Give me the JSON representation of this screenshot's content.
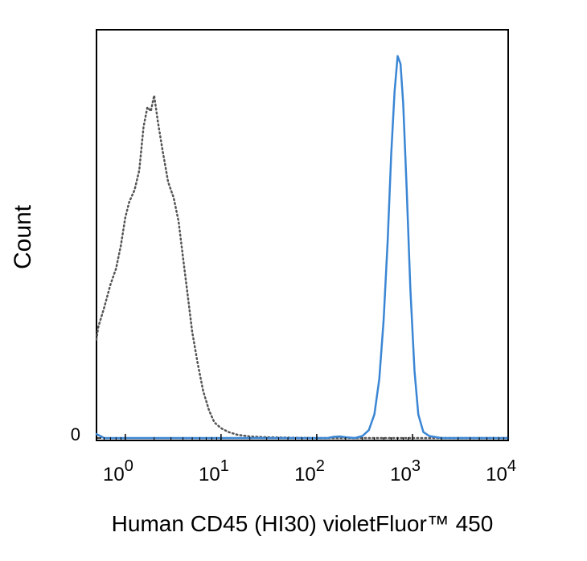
{
  "chart_data": {
    "type": "line",
    "title": "",
    "xlabel": "Human CD45 (HI30) violetFluor™ 450",
    "ylabel": "Count",
    "x_scale": "log",
    "xlim": [
      0.5,
      10000
    ],
    "ylim": [
      0,
      1.0
    ],
    "x_ticks": [
      {
        "value": 1,
        "base": "10",
        "exp": "0"
      },
      {
        "value": 10,
        "base": "10",
        "exp": "1"
      },
      {
        "value": 100,
        "base": "10",
        "exp": "2"
      },
      {
        "value": 1000,
        "base": "10",
        "exp": "3"
      },
      {
        "value": 10000,
        "base": "10",
        "exp": "4"
      }
    ],
    "y_ticks": [
      {
        "value": 0,
        "label": "0"
      }
    ],
    "grid": false,
    "series": [
      {
        "style": "dotted",
        "color": "#555555",
        "x": [
          0.5,
          0.52,
          0.55,
          0.6,
          0.7,
          0.8,
          0.9,
          1.0,
          1.1,
          1.25,
          1.4,
          1.55,
          1.7,
          1.85,
          2.0,
          2.2,
          2.45,
          2.8,
          3.2,
          3.6,
          4.0,
          4.5,
          5.0,
          5.7,
          6.5,
          7.5,
          8.5,
          10,
          12,
          15,
          20,
          30,
          50,
          100,
          1000,
          10000
        ],
        "y": [
          0.25,
          0.28,
          0.3,
          0.33,
          0.39,
          0.43,
          0.49,
          0.56,
          0.6,
          0.63,
          0.68,
          0.79,
          0.84,
          0.83,
          0.87,
          0.8,
          0.73,
          0.65,
          0.61,
          0.55,
          0.46,
          0.36,
          0.27,
          0.19,
          0.12,
          0.07,
          0.04,
          0.025,
          0.015,
          0.008,
          0.004,
          0.002,
          0.001,
          0.0,
          0.0,
          0.0
        ]
      },
      {
        "style": "solid",
        "color": "#3a86d4",
        "x": [
          0.5,
          0.55,
          0.6,
          1,
          10,
          50,
          100,
          130,
          150,
          175,
          200,
          250,
          300,
          350,
          400,
          450,
          500,
          550,
          600,
          650,
          700,
          750,
          800,
          870,
          950,
          1050,
          1150,
          1300,
          1500,
          2000,
          3000,
          10000
        ],
        "y": [
          0.01,
          0.005,
          0.0,
          0.0,
          0.0,
          0.0,
          0.0,
          0.0,
          0.003,
          0.004,
          0.002,
          0.0,
          0.005,
          0.02,
          0.06,
          0.15,
          0.3,
          0.5,
          0.72,
          0.88,
          0.97,
          0.95,
          0.85,
          0.63,
          0.38,
          0.17,
          0.06,
          0.015,
          0.005,
          0.0,
          0.0,
          0.0
        ]
      }
    ]
  }
}
